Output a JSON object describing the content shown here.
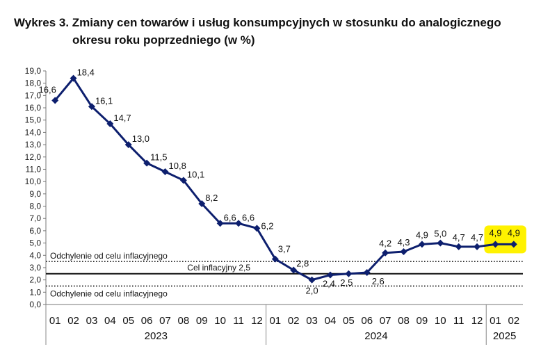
{
  "title": {
    "line1": "Wykres 3. Zmiany cen towarów i usług konsumpcyjnych w stosunku do analogicznego",
    "line2": "okresu roku poprzedniego (w %)"
  },
  "chart_data": {
    "type": "line",
    "title": "Wykres 3. Zmiany cen towarów i usług konsumpcyjnych w stosunku do analogicznego okresu roku poprzedniego (w %)",
    "categories": [
      "01",
      "02",
      "03",
      "04",
      "05",
      "06",
      "07",
      "08",
      "09",
      "10",
      "11",
      "12",
      "01",
      "02",
      "03",
      "04",
      "05",
      "06",
      "07",
      "08",
      "09",
      "10",
      "11",
      "12",
      "01",
      "02"
    ],
    "year_groups": [
      {
        "label": "2023",
        "start": 0,
        "end": 11
      },
      {
        "label": "2024",
        "start": 12,
        "end": 23
      },
      {
        "label": "2025",
        "start": 24,
        "end": 25
      }
    ],
    "series": [
      {
        "values": [
          16.6,
          18.4,
          16.1,
          14.7,
          13.0,
          11.5,
          10.8,
          10.1,
          8.2,
          6.6,
          6.6,
          6.2,
          3.7,
          2.8,
          2.0,
          2.4,
          2.5,
          2.6,
          4.2,
          4.3,
          4.9,
          5.0,
          4.7,
          4.7,
          4.9,
          4.9
        ],
        "labels": [
          "16,6",
          "18,4",
          "16,1",
          "14,7",
          "13,0",
          "11,5",
          "10,8",
          "10,1",
          "8,2",
          "6,6",
          "6,6",
          "6,2",
          "3,7",
          "2,8",
          "2,0",
          "2,4",
          "2,5",
          "2,6",
          "4,2",
          "4,3",
          "4,9",
          "5,0",
          "4,7",
          "4,7",
          "4,9",
          "4,9"
        ],
        "color": "#0d1f6e",
        "highlighted_points": [
          24,
          25
        ],
        "highlight_color": "#fff200"
      }
    ],
    "ylim": [
      0,
      19
    ],
    "yticks": [
      "0,0",
      "1,0",
      "2,0",
      "3,0",
      "4,0",
      "5,0",
      "6,0",
      "7,0",
      "8,0",
      "9,0",
      "10,0",
      "11,0",
      "12,0",
      "13,0",
      "14,0",
      "15,0",
      "16,0",
      "17,0",
      "18,0",
      "19,0"
    ],
    "reference_lines": [
      {
        "label": "Odchylenie od celu inflacyjnego",
        "value": 3.5,
        "style": "dotted"
      },
      {
        "label": "Cel inflacyjny 2,5",
        "value": 2.5,
        "style": "solid"
      },
      {
        "label": "Odchylenie od celu inflacyjnego",
        "value": 1.5,
        "style": "dotted"
      }
    ],
    "grid": false
  }
}
